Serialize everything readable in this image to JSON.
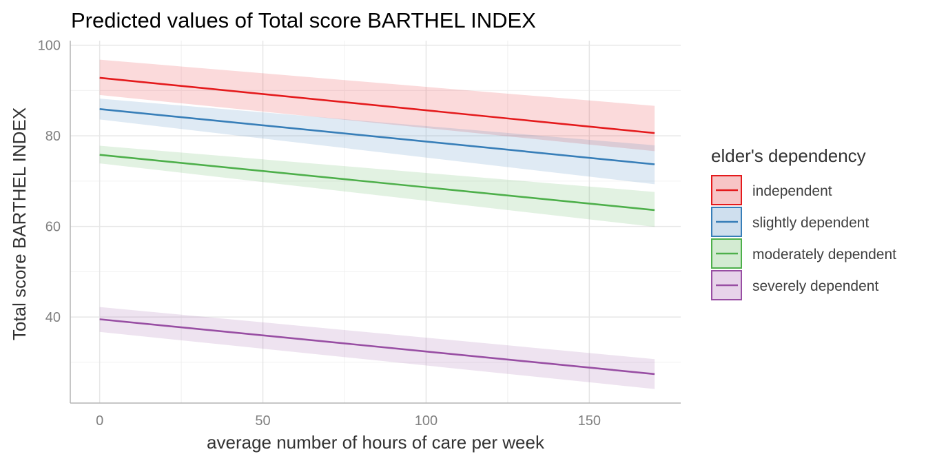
{
  "chart_data": {
    "type": "line",
    "title": "Predicted values of Total score BARTHEL INDEX",
    "xlabel": "average number of hours of care per week",
    "ylabel": "Total score BARTHEL INDEX",
    "xlim": [
      -9,
      178
    ],
    "ylim": [
      21,
      101
    ],
    "x_ticks": [
      0,
      50,
      100,
      150
    ],
    "x_tick_labels": [
      "0",
      "50",
      "100",
      "150"
    ],
    "y_ticks": [
      40,
      60,
      80,
      100
    ],
    "y_tick_labels": [
      "40",
      "60",
      "80",
      "100"
    ],
    "x_minor_ticks": [
      25,
      75,
      125
    ],
    "y_minor_ticks": [
      30,
      50,
      70,
      90
    ],
    "grid": true,
    "legend": {
      "title": "elder's dependency",
      "position": "right"
    },
    "x": [
      0,
      170
    ],
    "series": [
      {
        "name": "independent",
        "color": "#e41a1c",
        "fill": "#f7c5c6",
        "values": [
          92.8,
          80.6
        ],
        "lower": [
          89.0,
          76.6
        ],
        "upper": [
          96.8,
          86.6
        ]
      },
      {
        "name": "slightly dependent",
        "color": "#377eb8",
        "fill": "#cfdfee",
        "values": [
          85.9,
          73.7
        ],
        "lower": [
          83.6,
          69.3
        ],
        "upper": [
          88.2,
          77.9
        ]
      },
      {
        "name": "moderately dependent",
        "color": "#4daf4a",
        "fill": "#d3ebd2",
        "values": [
          75.8,
          63.6
        ],
        "lower": [
          73.9,
          59.9
        ],
        "upper": [
          77.8,
          67.6
        ]
      },
      {
        "name": "severely dependent",
        "color": "#984ea3",
        "fill": "#e7d4ea",
        "values": [
          39.5,
          27.4
        ],
        "lower": [
          36.7,
          24.1
        ],
        "upper": [
          42.2,
          30.7
        ]
      }
    ]
  }
}
